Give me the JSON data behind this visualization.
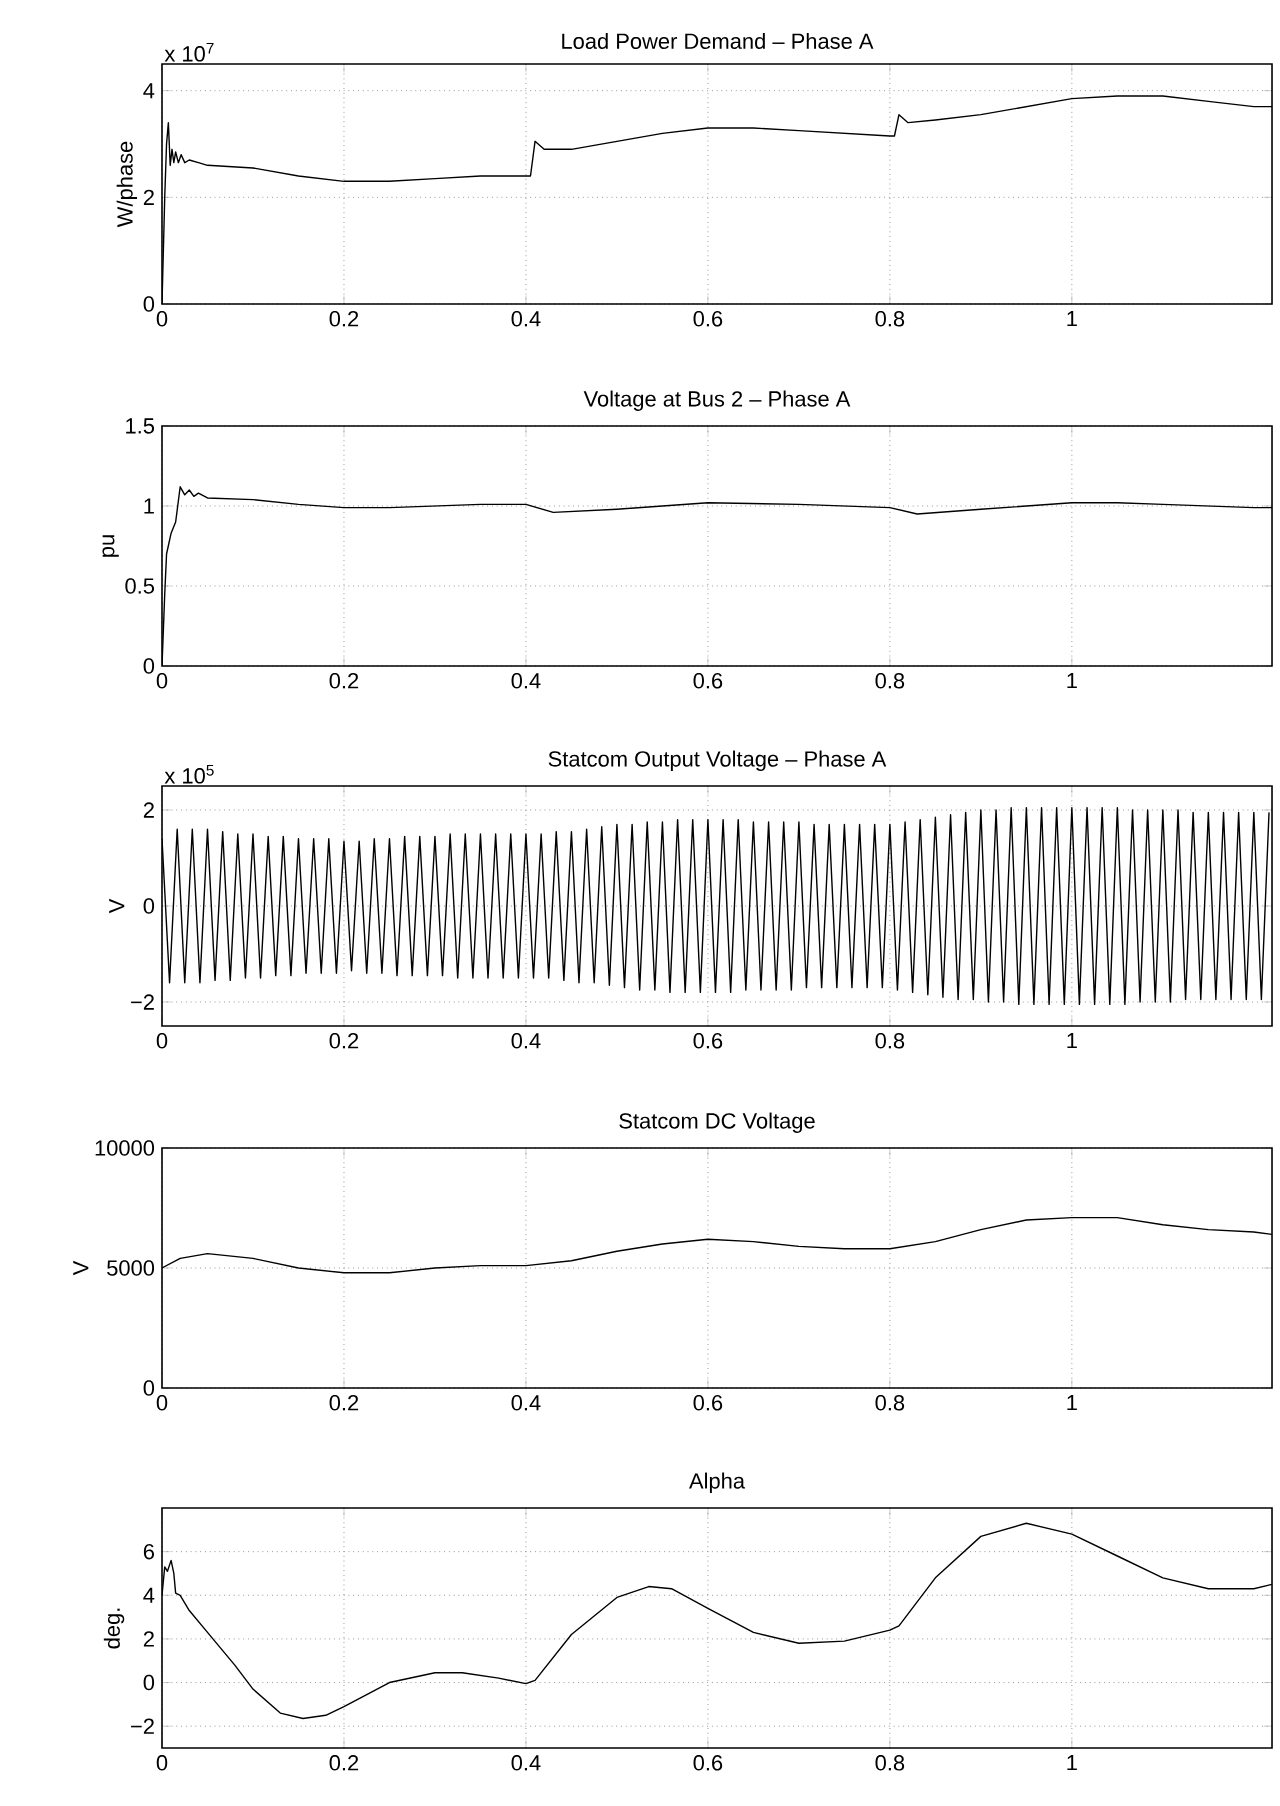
{
  "chart_data": [
    {
      "type": "line",
      "title": "Load Power Demand – Phase A",
      "ylabel": "W/phase",
      "annotations": [
        "x 10$^{7}$"
      ],
      "color": "#000000",
      "grid": true,
      "xlim": [
        0,
        1.22
      ],
      "xticks": [
        0,
        0.2,
        0.4,
        0.6,
        0.8,
        1
      ],
      "ylim": [
        0,
        4.5
      ],
      "yticks": [
        0,
        2,
        4
      ],
      "x": [
        0,
        0.003,
        0.005,
        0.007,
        0.009,
        0.011,
        0.013,
        0.015,
        0.018,
        0.021,
        0.025,
        0.03,
        0.04,
        0.05,
        0.1,
        0.15,
        0.2,
        0.25,
        0.3,
        0.35,
        0.4,
        0.405,
        0.41,
        0.42,
        0.45,
        0.5,
        0.55,
        0.6,
        0.65,
        0.7,
        0.75,
        0.8,
        0.805,
        0.81,
        0.82,
        0.85,
        0.9,
        0.95,
        1.0,
        1.05,
        1.1,
        1.15,
        1.2,
        1.22
      ],
      "values": [
        0,
        2.0,
        3.0,
        3.4,
        2.6,
        2.9,
        2.65,
        2.85,
        2.65,
        2.8,
        2.65,
        2.7,
        2.65,
        2.6,
        2.55,
        2.4,
        2.3,
        2.3,
        2.35,
        2.4,
        2.4,
        2.4,
        3.05,
        2.9,
        2.9,
        3.05,
        3.2,
        3.3,
        3.3,
        3.25,
        3.2,
        3.15,
        3.15,
        3.55,
        3.4,
        3.45,
        3.55,
        3.7,
        3.85,
        3.9,
        3.9,
        3.8,
        3.7,
        3.7
      ]
    },
    {
      "type": "line",
      "title": "Voltage at Bus 2 – Phase A",
      "ylabel": "pu",
      "color": "#000000",
      "grid": true,
      "xlim": [
        0,
        1.22
      ],
      "xticks": [
        0,
        0.2,
        0.4,
        0.6,
        0.8,
        1
      ],
      "ylim": [
        0,
        1.5
      ],
      "yticks": [
        0,
        0.5,
        1,
        1.5
      ],
      "x": [
        0,
        0.003,
        0.005,
        0.01,
        0.015,
        0.02,
        0.025,
        0.03,
        0.035,
        0.04,
        0.05,
        0.1,
        0.15,
        0.2,
        0.25,
        0.3,
        0.35,
        0.4,
        0.43,
        0.5,
        0.6,
        0.7,
        0.8,
        0.83,
        0.9,
        1.0,
        1.05,
        1.1,
        1.2,
        1.22
      ],
      "values": [
        0,
        0.45,
        0.7,
        0.83,
        0.9,
        1.12,
        1.07,
        1.1,
        1.06,
        1.08,
        1.05,
        1.04,
        1.01,
        0.99,
        0.99,
        1.0,
        1.01,
        1.01,
        0.96,
        0.98,
        1.02,
        1.01,
        0.99,
        0.95,
        0.98,
        1.02,
        1.02,
        1.01,
        0.99,
        0.99
      ]
    },
    {
      "type": "line",
      "title": "Statcom Output Voltage – Phase A",
      "ylabel": "V",
      "annotations": [
        "x 10$^{5}$"
      ],
      "color": "#000000",
      "grid": true,
      "xlim": [
        0,
        1.22
      ],
      "xticks": [
        0,
        0.2,
        0.4,
        0.6,
        0.8,
        1
      ],
      "ylim": [
        -2.5,
        2.5
      ],
      "yticks": [
        {
          "value": -2,
          "label": "−2"
        },
        0,
        2
      ],
      "x": [
        0,
        0.0083,
        0.0167,
        0.025,
        0.0333,
        0.0417,
        0.05,
        0.0583,
        0.0667,
        0.075,
        0.0833,
        0.0917,
        0.1,
        0.1083,
        0.1167,
        0.125,
        0.1333,
        0.1417,
        0.15,
        0.1583,
        0.1667,
        0.175,
        0.1833,
        0.1917,
        0.2,
        0.2083,
        0.2167,
        0.225,
        0.2333,
        0.2417,
        0.25,
        0.2583,
        0.2667,
        0.275,
        0.2833,
        0.2917,
        0.3,
        0.3083,
        0.3167,
        0.325,
        0.3333,
        0.3417,
        0.35,
        0.3583,
        0.3667,
        0.375,
        0.3833,
        0.3917,
        0.4,
        0.4083,
        0.4167,
        0.425,
        0.4333,
        0.4417,
        0.45,
        0.4583,
        0.4667,
        0.475,
        0.4833,
        0.4917,
        0.5,
        0.5083,
        0.5167,
        0.525,
        0.5333,
        0.5417,
        0.55,
        0.5583,
        0.5667,
        0.575,
        0.5833,
        0.5917,
        0.6,
        0.6083,
        0.6167,
        0.625,
        0.6333,
        0.6417,
        0.65,
        0.6583,
        0.6667,
        0.675,
        0.6833,
        0.6917,
        0.7,
        0.7083,
        0.7167,
        0.725,
        0.7333,
        0.7417,
        0.75,
        0.7583,
        0.7667,
        0.775,
        0.7833,
        0.7917,
        0.8,
        0.8083,
        0.8167,
        0.825,
        0.8333,
        0.8417,
        0.85,
        0.8583,
        0.8667,
        0.875,
        0.8833,
        0.8917,
        0.9,
        0.9083,
        0.9167,
        0.925,
        0.9333,
        0.9417,
        0.95,
        0.9583,
        0.9667,
        0.975,
        0.9833,
        0.9917,
        1.0,
        1.0083,
        1.0167,
        1.025,
        1.0333,
        1.0417,
        1.05,
        1.0583,
        1.0667,
        1.075,
        1.0833,
        1.0917,
        1.1,
        1.1083,
        1.1167,
        1.125,
        1.1333,
        1.1417,
        1.15,
        1.1583,
        1.1667,
        1.175,
        1.1833,
        1.1917,
        1.2,
        1.2083,
        1.2167
      ],
      "values": [
        1.4,
        -1.6,
        1.6,
        -1.6,
        1.6,
        -1.6,
        1.6,
        -1.55,
        1.55,
        -1.55,
        1.5,
        -1.5,
        1.5,
        -1.5,
        1.45,
        -1.45,
        1.45,
        -1.45,
        1.4,
        -1.4,
        1.4,
        -1.4,
        1.4,
        -1.4,
        1.35,
        -1.35,
        1.35,
        -1.4,
        1.4,
        -1.4,
        1.4,
        -1.45,
        1.45,
        -1.45,
        1.45,
        -1.45,
        1.45,
        -1.45,
        1.5,
        -1.5,
        1.5,
        -1.5,
        1.5,
        -1.5,
        1.5,
        -1.5,
        1.5,
        -1.5,
        1.5,
        -1.5,
        1.5,
        -1.5,
        1.55,
        -1.55,
        1.55,
        -1.6,
        1.6,
        -1.6,
        1.65,
        -1.65,
        1.7,
        -1.7,
        1.7,
        -1.75,
        1.75,
        -1.75,
        1.75,
        -1.8,
        1.8,
        -1.8,
        1.8,
        -1.8,
        1.8,
        -1.8,
        1.8,
        -1.8,
        1.8,
        -1.75,
        1.75,
        -1.75,
        1.75,
        -1.75,
        1.75,
        -1.75,
        1.75,
        -1.7,
        1.7,
        -1.7,
        1.7,
        -1.7,
        1.7,
        -1.7,
        1.7,
        -1.7,
        1.7,
        -1.7,
        1.7,
        -1.75,
        1.75,
        -1.8,
        1.8,
        -1.85,
        1.85,
        -1.9,
        1.9,
        -1.95,
        1.95,
        -1.95,
        2.0,
        -2.0,
        2.0,
        -2.0,
        2.05,
        -2.05,
        2.05,
        -2.05,
        2.05,
        -2.05,
        2.05,
        -2.05,
        2.05,
        -2.05,
        2.05,
        -2.05,
        2.05,
        -2.05,
        2.05,
        -2.05,
        2.0,
        -2.0,
        2.0,
        -2.0,
        2.0,
        -2.0,
        2.0,
        -1.95,
        1.95,
        -1.95,
        1.95,
        -1.95,
        1.95,
        -1.95,
        1.95,
        -1.95,
        1.95,
        -1.95,
        1.95
      ]
    },
    {
      "type": "line",
      "title": "Statcom DC Voltage",
      "ylabel": "V",
      "color": "#000000",
      "grid": true,
      "xlim": [
        0,
        1.22
      ],
      "xticks": [
        0,
        0.2,
        0.4,
        0.6,
        0.8,
        1
      ],
      "ylim": [
        0,
        10000
      ],
      "yticks": [
        0,
        5000,
        10000
      ],
      "x": [
        0,
        0.02,
        0.05,
        0.1,
        0.15,
        0.2,
        0.25,
        0.3,
        0.35,
        0.4,
        0.45,
        0.5,
        0.55,
        0.6,
        0.65,
        0.7,
        0.75,
        0.8,
        0.85,
        0.9,
        0.95,
        1.0,
        1.05,
        1.1,
        1.15,
        1.2,
        1.22
      ],
      "values": [
        5000,
        5400,
        5600,
        5400,
        5000,
        4800,
        4800,
        5000,
        5100,
        5100,
        5300,
        5700,
        6000,
        6200,
        6100,
        5900,
        5800,
        5800,
        6100,
        6600,
        7000,
        7100,
        7100,
        6800,
        6600,
        6500,
        6400
      ]
    },
    {
      "type": "line",
      "title": "Alpha",
      "ylabel": "deg.",
      "color": "#000000",
      "grid": true,
      "xlim": [
        0,
        1.22
      ],
      "xticks": [
        0,
        0.2,
        0.4,
        0.6,
        0.8,
        1
      ],
      "ylim": [
        -3,
        8
      ],
      "yticks": [
        {
          "value": -2,
          "label": "−2"
        },
        0,
        2,
        4,
        6
      ],
      "x": [
        0,
        0.003,
        0.006,
        0.01,
        0.013,
        0.015,
        0.02,
        0.03,
        0.05,
        0.08,
        0.1,
        0.13,
        0.155,
        0.18,
        0.2,
        0.25,
        0.3,
        0.33,
        0.37,
        0.4,
        0.41,
        0.45,
        0.5,
        0.535,
        0.56,
        0.6,
        0.65,
        0.7,
        0.75,
        0.8,
        0.81,
        0.85,
        0.9,
        0.95,
        1.0,
        1.05,
        1.1,
        1.15,
        1.2,
        1.22
      ],
      "values": [
        4,
        5.3,
        5.1,
        5.6,
        5.0,
        4.1,
        4.0,
        3.3,
        2.3,
        0.8,
        -0.3,
        -1.4,
        -1.65,
        -1.5,
        -1.1,
        0.0,
        0.45,
        0.45,
        0.2,
        -0.05,
        0.1,
        2.2,
        3.9,
        4.4,
        4.3,
        3.4,
        2.3,
        1.8,
        1.9,
        2.4,
        2.6,
        4.8,
        6.7,
        7.3,
        6.8,
        5.8,
        4.8,
        4.3,
        4.3,
        4.5
      ]
    }
  ]
}
